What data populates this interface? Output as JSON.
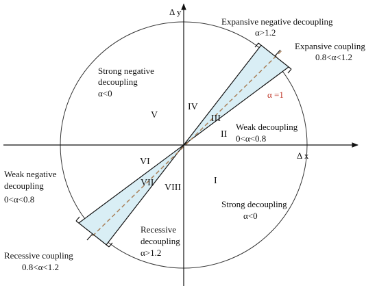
{
  "axes": {
    "x_label": "Δ x",
    "y_label": "Δ y"
  },
  "regions": {
    "expansive_negative": {
      "title": "Expansive  negative  decoupling",
      "condition": "α>1.2"
    },
    "expansive_coupling": {
      "title": "Expansive  coupling",
      "condition": "0.8<α<1.2"
    },
    "strong_negative": {
      "title_line1": "Strong negative",
      "title_line2": "decoupling",
      "condition": "α<0"
    },
    "weak_decoupling": {
      "title": "Weak decoupling",
      "condition": "0<α<0.8"
    },
    "weak_negative": {
      "title_line1": "Weak negative",
      "title_line2": "decoupling",
      "condition": "0<α<0.8"
    },
    "strong_decoupling": {
      "title": "Strong decoupling",
      "condition": "α<0"
    },
    "recessive_decoupling": {
      "title_line1": "Recessive",
      "title_line2": "decoupling",
      "condition": "α>1.2"
    },
    "recessive_coupling": {
      "title": "Recessive coupling",
      "condition": "0.8<α<1.2"
    }
  },
  "alpha_line_label": "α =1",
  "sectors": {
    "I": "I",
    "II": "II",
    "III": "III",
    "IV": "IV",
    "V": "V",
    "VI": "VI",
    "VII": "VII",
    "VIII": "VIII"
  },
  "colors": {
    "wedge_fill": "#d9eef5",
    "alpha_line": "#a9805a",
    "alpha_label": "#c0392b",
    "ink": "#111111"
  }
}
